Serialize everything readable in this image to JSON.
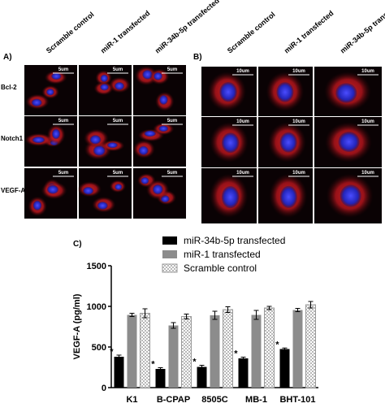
{
  "panel_a": {
    "label": "A)",
    "columns": [
      "Scramble control",
      "miR-1 transfected",
      "miR-34b-5p transfected"
    ],
    "rows": [
      "Bcl-2",
      "Notch1",
      "VEGF-A"
    ],
    "scale_bar": "5um"
  },
  "panel_b": {
    "label": "B)",
    "columns": [
      "Scramble control",
      "miR-1 transfected",
      "miR-34b-5p transfected"
    ],
    "scale_bar": "10um"
  },
  "chart_data": {
    "type": "bar",
    "label": "C)",
    "y_label": "VEGF-A (pg/ml)",
    "categories": [
      "K1",
      "B-CPAP",
      "8505C",
      "MB-1",
      "BHT-101"
    ],
    "series": [
      {
        "name": "miR-34b-5p transfected",
        "color": "#000000",
        "values": [
          380,
          230,
          255,
          360,
          475
        ],
        "errors": [
          20,
          15,
          20,
          15,
          12
        ],
        "significance": [
          "*",
          "*",
          "*",
          "*",
          "*"
        ]
      },
      {
        "name": "miR-1 transfected",
        "color": "#8c8c8c",
        "values": [
          895,
          765,
          890,
          895,
          955
        ],
        "errors": [
          20,
          35,
          50,
          55,
          20
        ]
      },
      {
        "name": "Scramble control",
        "color": "checkered",
        "values": [
          915,
          875,
          960,
          980,
          1020
        ],
        "errors": [
          55,
          30,
          35,
          20,
          40
        ]
      }
    ],
    "ylim": [
      0,
      1500
    ],
    "yticks": [
      0,
      500,
      1000,
      1500
    ]
  }
}
